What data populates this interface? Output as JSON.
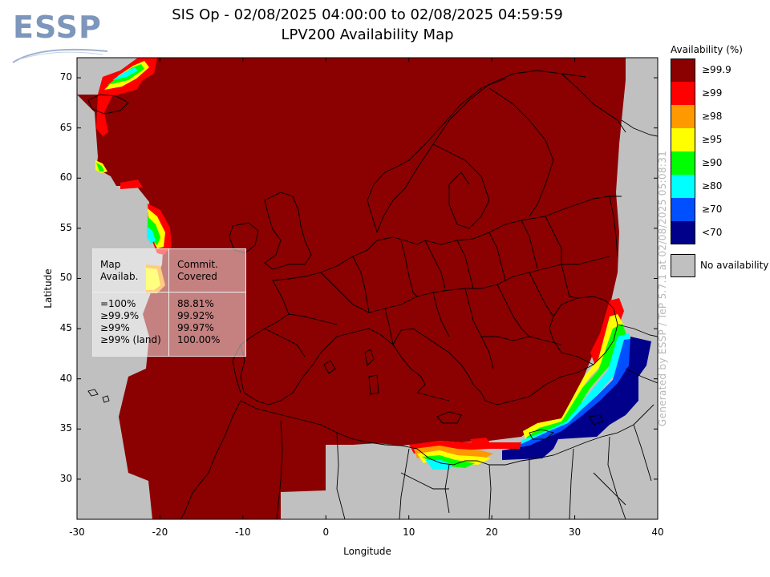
{
  "header": {
    "logo_text": "ESSP",
    "title_line1": "SIS Op - 02/08/2025 04:00:00 to 02/08/2025 04:59:59",
    "title_line2": "LPV200 Availability Map"
  },
  "chart_data": {
    "type": "heatmap",
    "xlabel": "Longitude",
    "ylabel": "Latitude",
    "xlim": [
      -30,
      40
    ],
    "ylim": [
      26,
      72
    ],
    "x_ticks": [
      "-30",
      "-20",
      "-10",
      "0",
      "10",
      "20",
      "30",
      "40"
    ],
    "y_ticks": [
      "70",
      "65",
      "60",
      "55",
      "50",
      "45",
      "40",
      "35",
      "30"
    ],
    "x_tick_values": [
      -30,
      -20,
      -10,
      0,
      10,
      20,
      30,
      40
    ],
    "y_tick_values": [
      70,
      65,
      60,
      55,
      50,
      45,
      40,
      35,
      30
    ],
    "legend": {
      "title": "Availability (%)",
      "entries": [
        {
          "label": "≥99.9",
          "color": "#8b0000"
        },
        {
          "label": "≥99",
          "color": "#ff0000"
        },
        {
          "label": "≥98",
          "color": "#ff9900"
        },
        {
          "label": "≥95",
          "color": "#ffff00"
        },
        {
          "label": "≥90",
          "color": "#00ff00"
        },
        {
          "label": "≥80",
          "color": "#00ffff"
        },
        {
          "label": "≥70",
          "color": "#0050ff"
        },
        {
          "label": "<70",
          "color": "#00008b"
        }
      ],
      "no_availability": {
        "label": "No availability",
        "color": "#c0c0c0"
      }
    },
    "stats_table": {
      "header_left": "Map\nAvailab.",
      "header_right": "Commit.\nCovered",
      "rows": [
        {
          "left": "=100%",
          "right": "88.81%"
        },
        {
          "left": "≥99.9%",
          "right": "99.92%"
        },
        {
          "left": "≥99%",
          "right": "99.97%"
        },
        {
          "left": "≥99% (land)",
          "right": "100.00%"
        }
      ]
    },
    "generated_note": "Generated by ESSP / TeP 5.7.1 at 02/08/2025 05:08:31"
  }
}
